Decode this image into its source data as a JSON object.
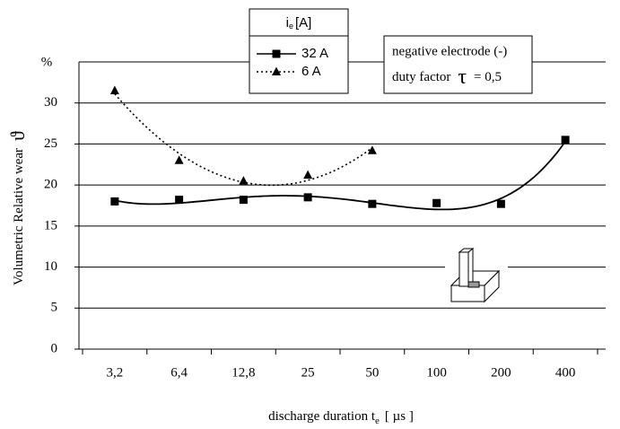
{
  "chart_data": {
    "type": "line",
    "categories": [
      "3,2",
      "6,4",
      "12,8",
      "25",
      "50",
      "100",
      "200",
      "400"
    ],
    "series": [
      {
        "name": "32 A",
        "color": "#000000",
        "marker": "square",
        "line": "solid",
        "trendline": {
          "type": "polynomial",
          "order": 4
        },
        "values": [
          18.0,
          18.2,
          18.2,
          18.5,
          17.7,
          17.8,
          17.7,
          25.5
        ]
      },
      {
        "name": "6 A",
        "color": "#000000",
        "marker": "triangle",
        "line": "dotted",
        "trendline": {
          "type": "polynomial",
          "order": 2
        },
        "values": [
          31.5,
          23.0,
          20.5,
          21.2,
          24.2,
          null,
          null,
          null
        ]
      }
    ],
    "ylim": [
      0,
      35
    ],
    "yticks": [
      0,
      5,
      10,
      15,
      20,
      25,
      30
    ],
    "grid": true,
    "y_unit": "%",
    "y_label": "Volumetric Relative wear",
    "y_symbol": "ϑ",
    "x_label": "discharge duration t",
    "x_label_sub": "e",
    "x_label_end": "[ µs ]",
    "legend_title": "i",
    "legend_title_sub": "e",
    "legend_title_end": "[A]",
    "annotation_line1": "negative electrode (-)",
    "annotation_line2": "duty factor",
    "annotation_symbol": "τ",
    "annotation_value": "= 0,5"
  }
}
